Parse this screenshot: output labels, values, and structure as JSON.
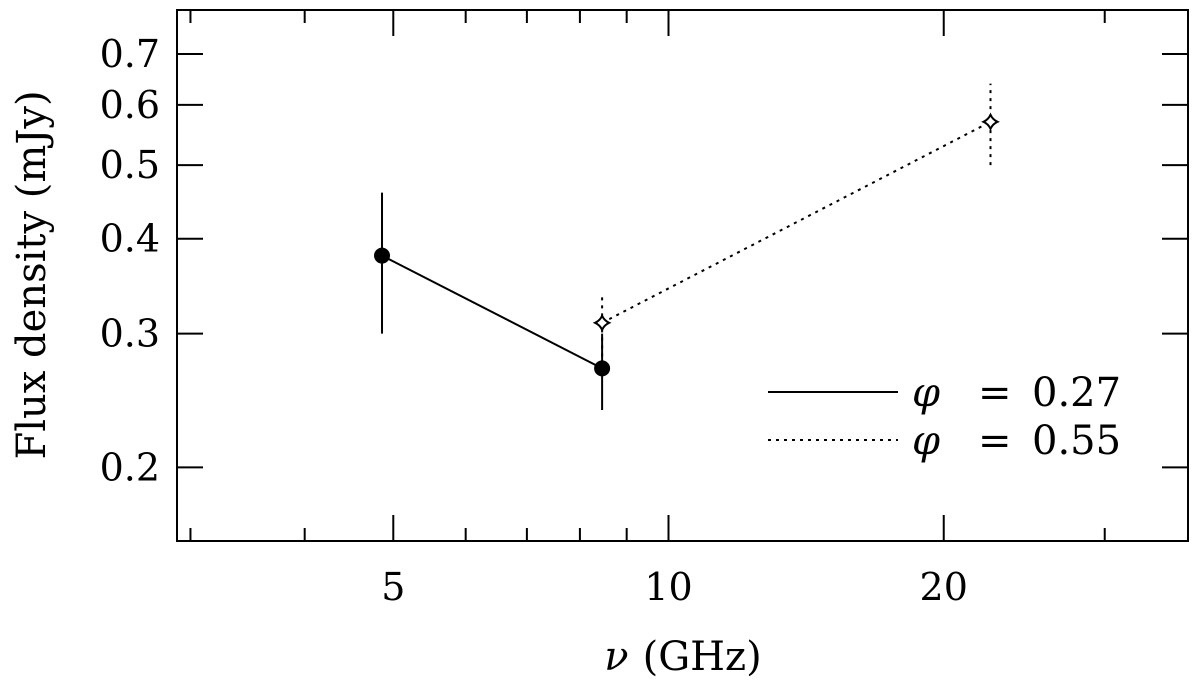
{
  "chart_data": {
    "type": "line",
    "x_scale": "log",
    "y_scale": "log",
    "xlabel_symbol": "ν",
    "xlabel_unit": "(GHz)",
    "ylabel": "Flux density (mJy)",
    "xlim": [
      2.9,
      37
    ],
    "ylim": [
      0.16,
      0.8
    ],
    "x_ticks_labeled": [
      5,
      10,
      20
    ],
    "x_tick_labels": [
      "5",
      "10",
      "20"
    ],
    "x_ticks_minor": [
      3,
      4,
      6,
      7,
      8,
      9,
      30
    ],
    "y_ticks": [
      0.2,
      0.3,
      0.4,
      0.5,
      0.6,
      0.7
    ],
    "y_tick_labels": [
      "0.2",
      "0.3",
      "0.4",
      "0.5",
      "0.6",
      "0.7"
    ],
    "legend_position": "bottom-right",
    "series": [
      {
        "symbol": "φ",
        "equals": "=",
        "value": "0.27",
        "line_style": "solid",
        "marker": "filled-circle",
        "x": [
          4.86,
          8.46
        ],
        "y": [
          0.38,
          0.27
        ],
        "y_err_low": [
          0.3,
          0.238
        ],
        "y_err_high": [
          0.46,
          0.3
        ]
      },
      {
        "symbol": "φ",
        "equals": "=",
        "value": "0.55",
        "line_style": "dotted",
        "marker": "open-star",
        "x": [
          8.46,
          22.5
        ],
        "y": [
          0.31,
          0.57
        ],
        "y_err_low": [
          0.28,
          0.5
        ],
        "y_err_high": [
          0.338,
          0.64
        ]
      }
    ]
  }
}
